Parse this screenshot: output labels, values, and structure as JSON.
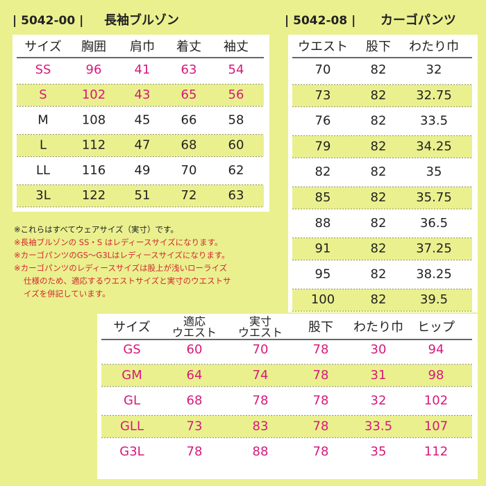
{
  "tables": [
    {
      "code": "| 5042-00 |",
      "title": "長袖ブルゾン",
      "columns": [
        [
          "サイズ"
        ],
        [
          "胸囲"
        ],
        [
          "肩巾"
        ],
        [
          "着丈"
        ],
        [
          "袖丈"
        ]
      ],
      "rows": [
        [
          "SS",
          96,
          41,
          63,
          54
        ],
        [
          "S",
          102,
          43,
          65,
          56
        ],
        [
          "M",
          108,
          45,
          66,
          58
        ],
        [
          "L",
          112,
          47,
          68,
          60
        ],
        [
          "LL",
          116,
          49,
          70,
          62
        ],
        [
          "3L",
          122,
          51,
          72,
          63
        ]
      ],
      "accent_rows": [
        0,
        1
      ],
      "accent_color": "#d6197a"
    },
    {
      "code": "| 5042-08 |",
      "title": "カーゴパンツ",
      "columns": [
        [
          "ウエスト"
        ],
        [
          "股下"
        ],
        [
          "わたり巾"
        ]
      ],
      "rows": [
        [
          70,
          82,
          32
        ],
        [
          73,
          82,
          32.75
        ],
        [
          76,
          82,
          33.5
        ],
        [
          79,
          82,
          34.25
        ],
        [
          82,
          82,
          35
        ],
        [
          85,
          82,
          35.75
        ],
        [
          88,
          82,
          36.5
        ],
        [
          91,
          82,
          37.25
        ],
        [
          95,
          82,
          38.25
        ],
        [
          100,
          82,
          39.5
        ]
      ],
      "accent_rows": [],
      "accent_color": "#d6197a"
    },
    {
      "columns": [
        [
          "サイズ"
        ],
        [
          "適応",
          "ウエスト"
        ],
        [
          "実寸",
          "ウエスト"
        ],
        [
          "股下"
        ],
        [
          "わたり巾"
        ],
        [
          "ヒップ"
        ]
      ],
      "rows": [
        [
          "GS",
          60,
          70,
          78,
          30,
          94
        ],
        [
          "GM",
          64,
          74,
          78,
          31,
          98
        ],
        [
          "GL",
          68,
          78,
          78,
          32,
          102
        ],
        [
          "GLL",
          73,
          83,
          78,
          33.5,
          107
        ],
        [
          "G3L",
          78,
          88,
          78,
          35,
          112
        ]
      ],
      "accent_rows": [
        0,
        1,
        2,
        3,
        4
      ],
      "accent_color": "#d6197a"
    }
  ],
  "notes": [
    {
      "lines": [
        "※これらはすべてウェアサイズ（実寸）です。"
      ],
      "color": "#222222"
    },
    {
      "lines": [
        "※長袖ブルゾンの SS・S はレディースサイズになります。"
      ],
      "color": "#d4262e"
    },
    {
      "lines": [
        "※カーゴパンツのGS〜G3Lはレディースサイズになります。"
      ],
      "color": "#d4262e"
    },
    {
      "lines": [
        "※カーゴパンツのレディースサイズは股上が浅いローライズ",
        "仕様のため、適応するウエストサイズと実寸のウエストサ",
        "イズを併記しています。"
      ],
      "color": "#d4262e"
    }
  ]
}
